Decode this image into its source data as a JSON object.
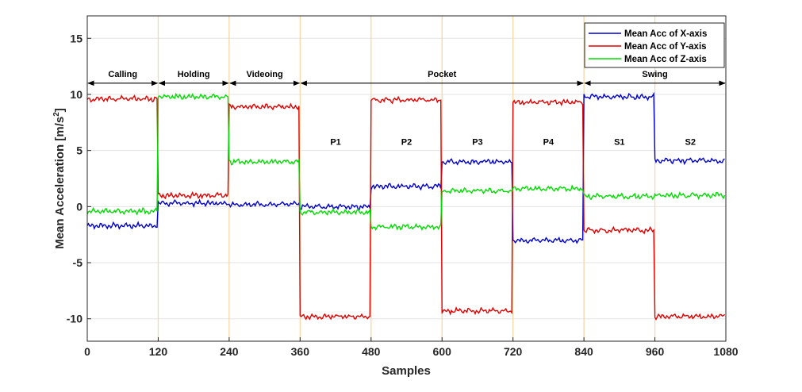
{
  "chart_data": {
    "type": "line",
    "xlabel": "Samples",
    "ylabel_main": "Mean Acceleration [m/s",
    "ylabel_sup": "2",
    "ylabel_end": "]",
    "xlim": [
      0,
      1080
    ],
    "ylim": [
      -12,
      17
    ],
    "xticks": [
      0,
      120,
      240,
      360,
      480,
      600,
      720,
      840,
      960,
      1080
    ],
    "yticks": [
      -10,
      -5,
      0,
      5,
      10,
      15
    ],
    "grid": true,
    "legend_position": "top-right",
    "segment_boundaries": [
      120,
      240,
      360,
      480,
      600,
      720,
      840,
      960
    ],
    "activities": [
      {
        "label": "Calling",
        "start": 0,
        "end": 120
      },
      {
        "label": "Holding",
        "start": 120,
        "end": 240
      },
      {
        "label": "Videoing",
        "start": 240,
        "end": 360
      },
      {
        "label": "Pocket",
        "start": 360,
        "end": 840
      },
      {
        "label": "Swing",
        "start": 840,
        "end": 1080
      }
    ],
    "sub_labels": [
      {
        "label": "P1",
        "x": 420,
        "y": 5.5
      },
      {
        "label": "P2",
        "x": 540,
        "y": 5.5
      },
      {
        "label": "P3",
        "x": 660,
        "y": 5.5
      },
      {
        "label": "P4",
        "x": 780,
        "y": 5.5
      },
      {
        "label": "S1",
        "x": 900,
        "y": 5.5
      },
      {
        "label": "S2",
        "x": 1020,
        "y": 5.5
      }
    ],
    "series": [
      {
        "name": "Mean Acc of X-axis",
        "color": "#0000cc",
        "segment_levels": [
          -1.7,
          0.3,
          0.2,
          0.0,
          1.8,
          4.0,
          -3.0,
          9.8,
          4.1
        ]
      },
      {
        "name": "Mean Acc of Y-axis",
        "color": "#e00000",
        "segment_levels": [
          9.6,
          1.0,
          8.9,
          -9.8,
          9.5,
          -9.3,
          9.3,
          -2.1,
          -9.8
        ]
      },
      {
        "name": "Mean Acc of Z-axis",
        "color": "#00dd00",
        "segment_levels": [
          -0.4,
          9.8,
          4.0,
          -0.5,
          -1.8,
          1.4,
          1.6,
          0.9,
          1.0
        ]
      }
    ]
  }
}
